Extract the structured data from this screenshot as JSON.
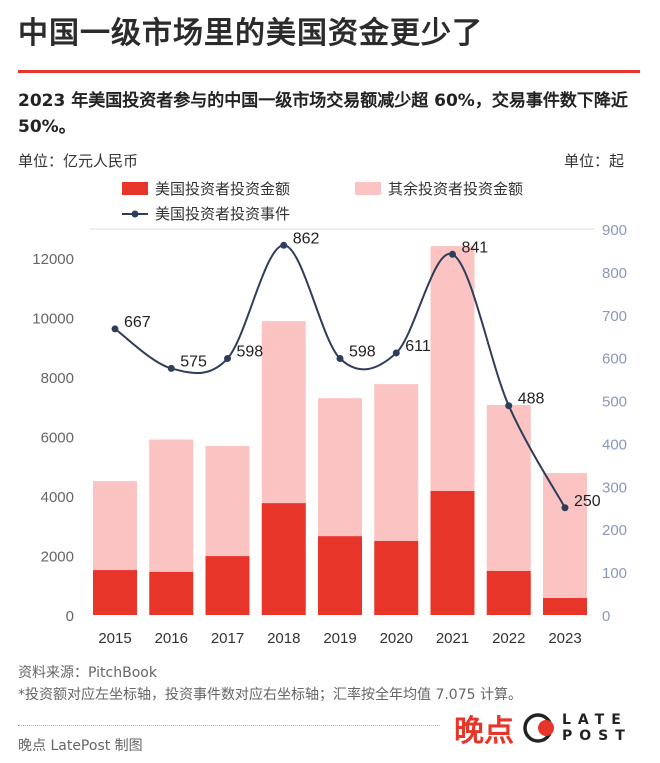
{
  "title": "中国一级市场里的美国资金更少了",
  "subtitle": "2023 年美国投资者参与的中国一级市场交易额减少超 60%，交易事件数下降近 50%。",
  "left_unit": "单位：亿元人民币",
  "right_unit": "单位：起",
  "source": "资料来源：PitchBook",
  "note": "*投资额对应左坐标轴，投资事件数对应右坐标轴；汇率按全年均值 7.075 计算。",
  "credit": "晚点 LatePost 制图",
  "logo": {
    "cn": "晚点",
    "en_top": "LATE",
    "en_bottom": "POST"
  },
  "colors": {
    "us_amount": "#e8352a",
    "other_amount": "#fbc4c2",
    "events_line": "#2e3d5a",
    "right_axis": "#8a98bd",
    "accent": "#e8352a"
  },
  "chart_data": {
    "type": "bar+line",
    "categories": [
      "2015",
      "2016",
      "2017",
      "2018",
      "2019",
      "2020",
      "2021",
      "2022",
      "2023"
    ],
    "series": [
      {
        "name": "美国投资者投资金额",
        "type": "stacked-bar",
        "axis": "left",
        "values": [
          1510,
          1450,
          1980,
          3760,
          2650,
          2490,
          4170,
          1480,
          570
        ]
      },
      {
        "name": "其余投资者投资金额",
        "type": "stacked-bar",
        "axis": "left",
        "values": [
          2990,
          4450,
          3700,
          6120,
          4640,
          5270,
          8230,
          5580,
          4200
        ]
      },
      {
        "name": "美国投资者投资事件",
        "type": "line",
        "axis": "right",
        "values": [
          667,
          575,
          598,
          862,
          598,
          611,
          841,
          488,
          250
        ]
      }
    ],
    "left_axis": {
      "ticks": [
        0,
        2000,
        4000,
        6000,
        8000,
        10000,
        12000
      ],
      "range": [
        0,
        12000
      ]
    },
    "right_axis": {
      "ticks": [
        0,
        100,
        200,
        300,
        400,
        500,
        600,
        700,
        800,
        900
      ],
      "range": [
        0,
        900
      ]
    },
    "legend": "top",
    "grid": false
  }
}
